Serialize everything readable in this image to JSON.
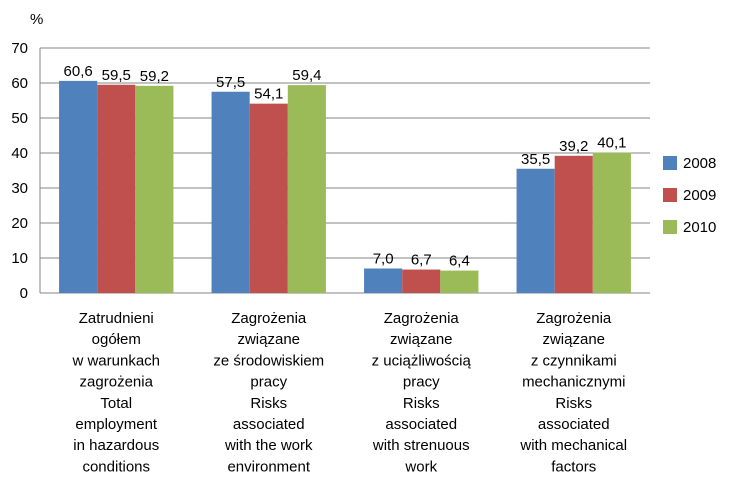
{
  "chart_data": {
    "type": "bar",
    "ylabel": "%",
    "categories": [
      [
        "Zatrudnieni",
        "ogółem",
        "w warunkach",
        "zagrożenia",
        "Total",
        "employment",
        "in hazardous",
        "conditions"
      ],
      [
        "Zagrożenia",
        "związane",
        "ze środowiskiem",
        "pracy",
        "Risks",
        "associated",
        "with the work",
        "environment"
      ],
      [
        "Zagrożenia",
        "związane",
        "z uciążliwością",
        "pracy",
        "Risks",
        "associated",
        "with strenuous",
        "work"
      ],
      [
        "Zagrożenia",
        "związane",
        "z czynnikami",
        "mechanicznymi",
        "Risks",
        "associated",
        "with mechanical",
        "factors"
      ]
    ],
    "series": [
      {
        "name": "2008",
        "color": "#4f81bd",
        "values": [
          60.6,
          57.5,
          7.0,
          35.5
        ],
        "value_labels": [
          "60,6",
          "57,5",
          "7,0",
          "35,5"
        ]
      },
      {
        "name": "2009",
        "color": "#c0504d",
        "values": [
          59.5,
          54.1,
          6.7,
          39.2
        ],
        "value_labels": [
          "59,5",
          "54,1",
          "6,7",
          "39,2"
        ]
      },
      {
        "name": "2010",
        "color": "#9bbb59",
        "values": [
          59.2,
          59.4,
          6.4,
          40.1
        ],
        "value_labels": [
          "59,2",
          "59,4",
          "6,4",
          "40,1"
        ]
      }
    ],
    "ylim": [
      0,
      70
    ],
    "yticks": [
      0,
      10,
      20,
      30,
      40,
      50,
      60,
      70
    ],
    "grid": true,
    "legend": "right"
  }
}
